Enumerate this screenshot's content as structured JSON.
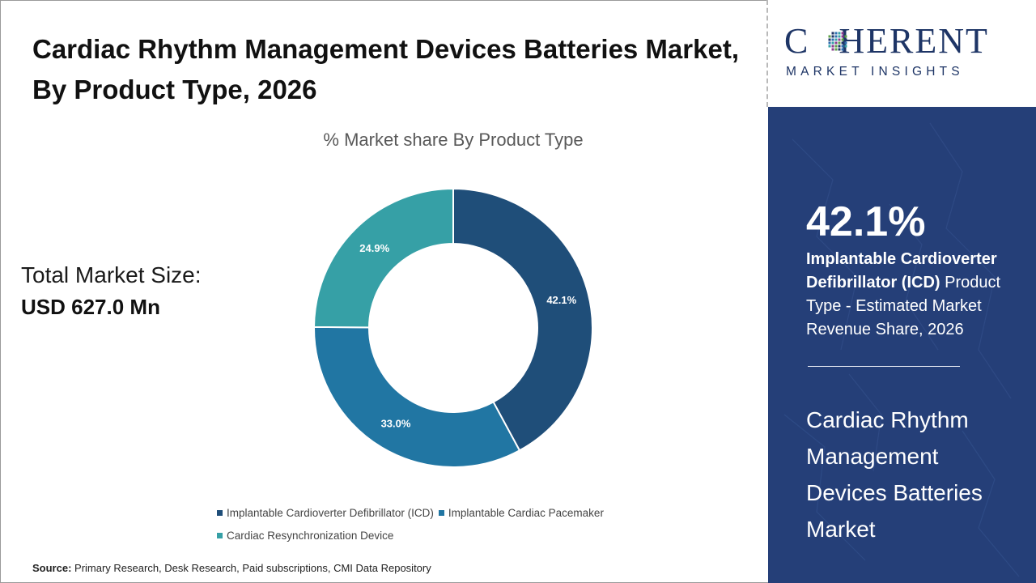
{
  "title": "Cardiac Rhythm Management Devices Batteries Market, By Product Type, 2026",
  "total_market": {
    "label": "Total Market Size:",
    "value": "USD 627.0 Mn"
  },
  "source": {
    "label": "Source:",
    "text": "Primary Research, Desk Research, Paid subscriptions, CMI Data Repository"
  },
  "logo": {
    "name": "COHERENT",
    "name_before": "C",
    "name_after": "HERENT",
    "tagline": "MARKET INSIGHTS"
  },
  "highlight": {
    "value": "42.1%",
    "segment_bold": "Implantable Cardioverter Defibrillator (ICD)",
    "description": " Product Type - Estimated Market Revenue Share, 2026"
  },
  "market_name": "Cardiac Rhythm Management Devices Batteries Market",
  "colors": {
    "panel": "#253f78",
    "icd": "#1f4e79",
    "pacemaker": "#2176a3",
    "crt": "#36a0a6"
  },
  "chart_data": {
    "type": "pie",
    "subtype": "donut",
    "title": "% Market share By Product Type",
    "unit": "%",
    "categories": [
      "Implantable Cardioverter Defibrillator (ICD)",
      "Implantable Cardiac Pacemaker",
      "Cardiac Resynchronization Device"
    ],
    "values": [
      42.1,
      33.0,
      24.9
    ],
    "data_labels": [
      "42.1%",
      "33.0%",
      "24.9%"
    ],
    "colors": [
      "#1f4e79",
      "#2176a3",
      "#36a0a6"
    ],
    "legend_position": "bottom"
  }
}
